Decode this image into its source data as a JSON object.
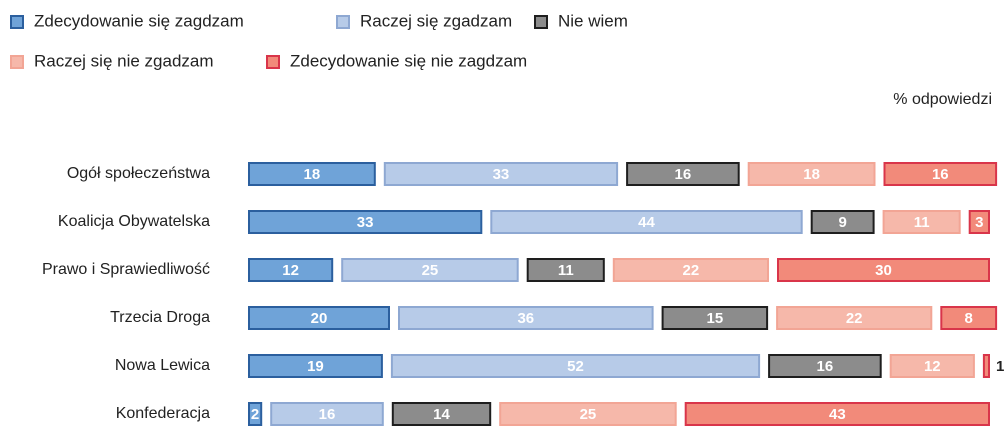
{
  "chart_data": {
    "type": "bar",
    "orientation": "horizontal",
    "stacked": true,
    "subtitle": "% odpowiedzi",
    "categories": [
      "Ogół społeczeństwa",
      "Koalicja Obywatelska",
      "Prawo i Sprawiedliwość",
      "Trzecia Droga",
      "Nowa Lewica",
      "Konfederacja"
    ],
    "series": [
      {
        "name": "Zdecydowanie się zagdzam",
        "color": "#6fa3d8",
        "edge_color": "#2b5f9e",
        "values": [
          18,
          33,
          12,
          20,
          19,
          2
        ]
      },
      {
        "name": "Raczej się zgadzam",
        "color": "#b7cbe8",
        "edge_color": "#8ea8d2",
        "values": [
          33,
          44,
          25,
          36,
          52,
          16
        ]
      },
      {
        "name": "Nie wiem",
        "color": "#8c8c8c",
        "edge_color": "#1e1e1e",
        "values": [
          16,
          9,
          11,
          15,
          16,
          14
        ]
      },
      {
        "name": "Raczej się nie zgadzam",
        "color": "#f6b8aa",
        "edge_color": "#f2a595",
        "values": [
          18,
          11,
          22,
          22,
          12,
          25
        ]
      },
      {
        "name": "Zdecydowanie się nie zagdzam",
        "color": "#f28a7a",
        "edge_color": "#d9354a",
        "values": [
          16,
          3,
          30,
          8,
          1,
          43
        ]
      }
    ],
    "legend": "top-left"
  }
}
